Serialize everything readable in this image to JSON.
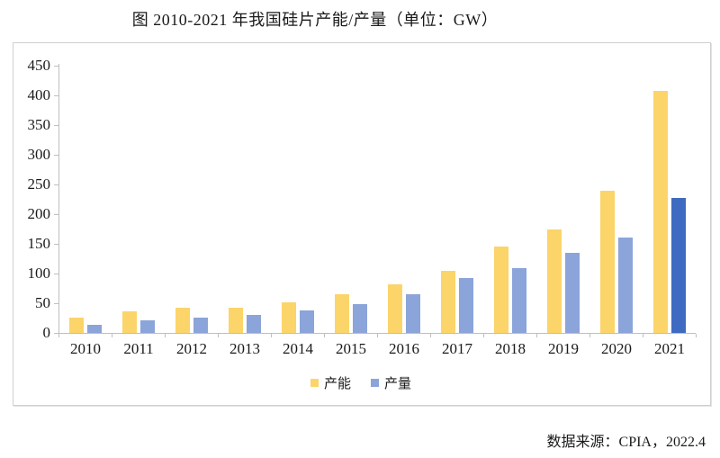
{
  "title": "图 2010-2021 年我国硅片产能/产量（单位：GW）",
  "source": "数据来源：CPIA，2022.4",
  "legend": {
    "capacity_label": "产能",
    "output_label": "产量"
  },
  "colors": {
    "capacity": "#FBD46A",
    "output": "#8BA4D9",
    "output_highlight": "#3E6BC1",
    "axis": "#BFBFBF",
    "frame_border": "#CFCFCF",
    "text": "#1A1A1A"
  },
  "chart_data": {
    "type": "bar",
    "title": "图 2010-2021 年我国硅片产能/产量（单位：GW）",
    "unit": "GW",
    "categories": [
      "2010",
      "2011",
      "2012",
      "2013",
      "2014",
      "2015",
      "2016",
      "2017",
      "2018",
      "2019",
      "2020",
      "2021"
    ],
    "series": [
      {
        "name": "产能",
        "values": [
          25,
          37,
          42,
          43,
          51,
          65,
          82,
          105,
          146,
          174,
          240,
          407
        ]
      },
      {
        "name": "产量",
        "values": [
          13,
          21,
          26,
          30,
          38,
          48,
          65,
          92,
          109,
          135,
          161,
          227
        ]
      }
    ],
    "ylim": [
      0,
      450
    ],
    "ytick_step": 50,
    "grid": false,
    "legend_position": "bottom",
    "highlight": {
      "series": "产量",
      "category": "2021"
    }
  }
}
